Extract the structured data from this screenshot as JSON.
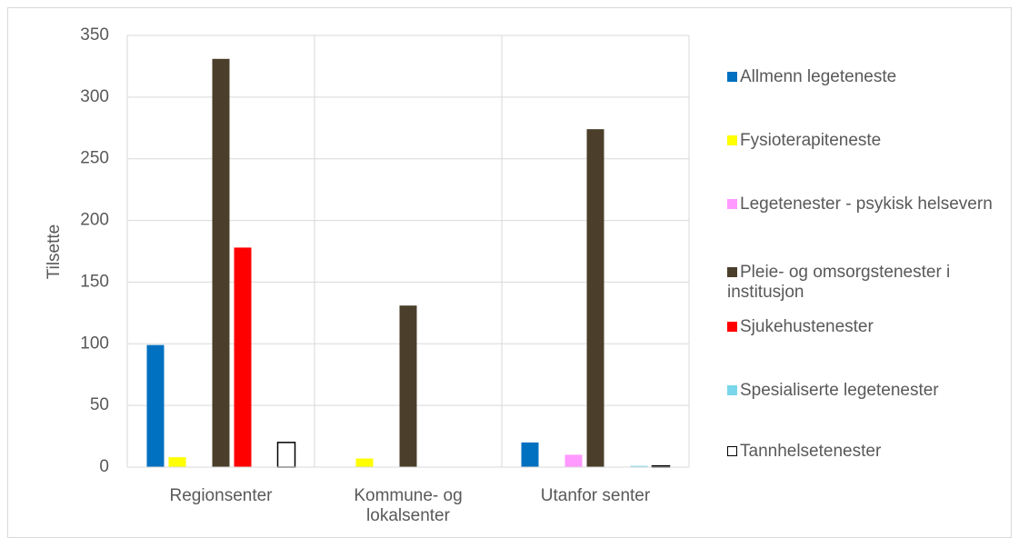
{
  "chart_data": {
    "type": "bar",
    "ylabel": "Tilsette",
    "categories": [
      "Regionsenter",
      "Kommune- og lokalsenter",
      "Utanfor senter"
    ],
    "series": [
      {
        "name": "Allmenn legeteneste",
        "color": "#0070c0",
        "values": [
          99,
          0,
          20
        ]
      },
      {
        "name": "Fysioterapiteneste",
        "color": "#ffff00",
        "values": [
          8,
          7,
          0
        ]
      },
      {
        "name": "Legetenester - psykisk helsevern",
        "color": "#ff99ff",
        "values": [
          0,
          0,
          10
        ]
      },
      {
        "name": "Pleie- og omsorgstenester i institusjon",
        "color": "#4b3f2b",
        "values": [
          331,
          131,
          274
        ]
      },
      {
        "name": "Sjukehustenester",
        "color": "#ff0000",
        "values": [
          178,
          0,
          0
        ]
      },
      {
        "name": "Spesialiserte legetenester",
        "color": "#78d7ea",
        "values": [
          0,
          0,
          1
        ]
      },
      {
        "name": "Tannhelsetenester",
        "color": "#ffffff",
        "edgecolor": "#000000",
        "values": [
          20,
          0,
          1
        ]
      }
    ],
    "ylim": [
      0,
      350
    ],
    "yticks": [
      0,
      50,
      100,
      150,
      200,
      250,
      300,
      350
    ],
    "grid": true,
    "legend": "right"
  }
}
